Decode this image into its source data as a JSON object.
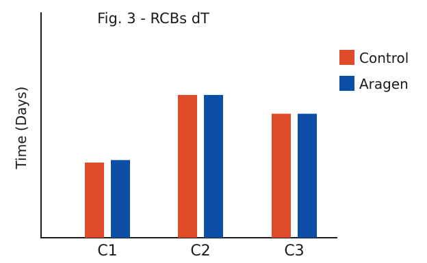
{
  "chart_data": {
    "type": "bar",
    "title": "Fig. 3 - RCBs dT",
    "xlabel": "",
    "ylabel": "Time (Days)",
    "categories": [
      "C1",
      "C2",
      "C3"
    ],
    "series": [
      {
        "name": "Control",
        "color": "#df4a2a",
        "values": [
          3.0,
          5.7,
          4.95
        ]
      },
      {
        "name": "Aragen",
        "color": "#0d4ea6",
        "values": [
          3.1,
          5.7,
          4.95
        ]
      }
    ],
    "ylim": [
      0,
      9
    ],
    "grid": false,
    "legend_position": "right"
  }
}
